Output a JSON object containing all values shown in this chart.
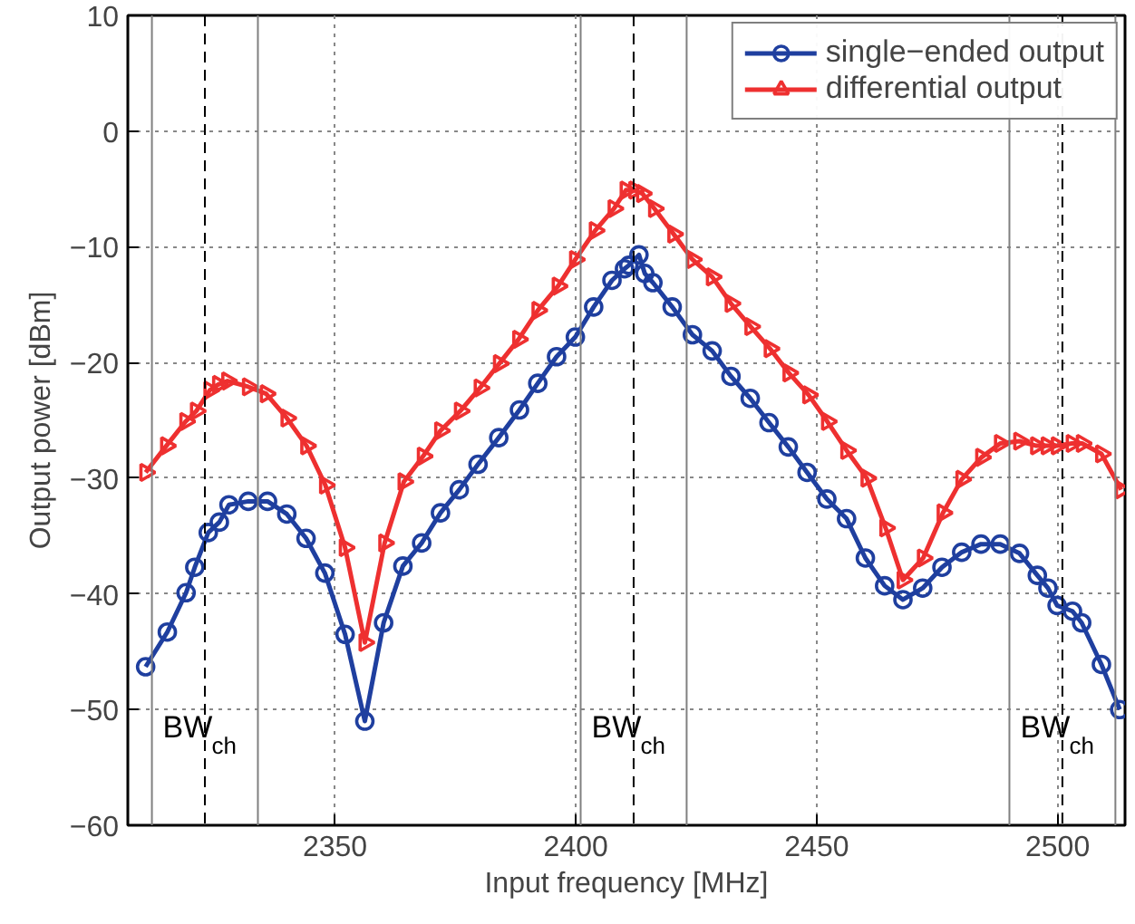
{
  "chart_data": {
    "type": "line",
    "xlabel": "Input frequency [MHz]",
    "ylabel": "Output power [dBm]",
    "xlim": [
      2307,
      2514
    ],
    "ylim": [
      -60,
      10
    ],
    "xticks": [
      2350,
      2400,
      2450,
      2500
    ],
    "yticks": [
      -60,
      -50,
      -40,
      -30,
      -20,
      -10,
      0,
      10
    ],
    "grid": true,
    "legend": "top right",
    "line_style": "solid",
    "series": [
      {
        "name": "single−ended output",
        "color": "#1f3f9f",
        "marker": "circle",
        "x": [
          2310.7,
          2315.2,
          2319.1,
          2320.9,
          2323.7,
          2326.0,
          2328.0,
          2332.0,
          2336.0,
          2340.0,
          2344.0,
          2347.9,
          2352.1,
          2356.2,
          2360.1,
          2364.1,
          2368.0,
          2371.9,
          2375.8,
          2379.7,
          2384.0,
          2388.3,
          2392.1,
          2396.0,
          2399.9,
          2403.7,
          2407.5,
          2410.1,
          2411.0,
          2413.1,
          2414.3,
          2416.0,
          2420.0,
          2424.2,
          2428.3,
          2432.2,
          2436.2,
          2440.1,
          2444.1,
          2448.0,
          2452.1,
          2456.2,
          2460.1,
          2464.1,
          2467.9,
          2472.0,
          2476.0,
          2480.1,
          2484.1,
          2488.1,
          2492.1,
          2495.8,
          2498.0,
          2499.9,
          2503.1,
          2505.0,
          2509.1,
          2512.9
        ],
        "values": [
          -46.3,
          -43.3,
          -39.9,
          -37.7,
          -34.7,
          -33.8,
          -32.3,
          -32.0,
          -32.0,
          -33.1,
          -35.2,
          -38.2,
          -43.5,
          -51.0,
          -42.5,
          -37.6,
          -35.6,
          -33.0,
          -31.0,
          -28.8,
          -26.5,
          -24.1,
          -21.8,
          -19.5,
          -17.8,
          -15.2,
          -12.9,
          -11.9,
          -11.6,
          -10.7,
          -12.3,
          -13.1,
          -15.2,
          -17.6,
          -19.0,
          -21.2,
          -23.1,
          -25.2,
          -27.3,
          -29.5,
          -31.8,
          -33.5,
          -36.9,
          -39.3,
          -40.5,
          -39.5,
          -37.7,
          -36.4,
          -35.7,
          -35.7,
          -36.5,
          -38.4,
          -39.5,
          -41.0,
          -41.5,
          -42.5,
          -46.1,
          -50.0
        ]
      },
      {
        "name": "differential output",
        "color": "#ee3030",
        "marker": "triangle",
        "x": [
          2310.7,
          2315.0,
          2319.0,
          2321.2,
          2324.0,
          2325.8,
          2327.7,
          2332.0,
          2335.7,
          2340.0,
          2344.1,
          2348.0,
          2352.1,
          2356.2,
          2360.3,
          2364.3,
          2368.3,
          2371.9,
          2376.0,
          2380.1,
          2384.1,
          2388.1,
          2392.1,
          2396.3,
          2399.9,
          2404.0,
          2407.9,
          2410.4,
          2412.2,
          2413.8,
          2416.3,
          2420.3,
          2424.2,
          2428.3,
          2432.2,
          2436.3,
          2440.3,
          2444.2,
          2448.3,
          2452.2,
          2456.2,
          2460.4,
          2464.3,
          2467.9,
          2472.1,
          2476.2,
          2480.1,
          2484.2,
          2488.1,
          2492.1,
          2495.6,
          2497.8,
          2499.9,
          2503.0,
          2505.1,
          2509.1,
          2513.2
        ],
        "values": [
          -29.5,
          -27.2,
          -25.1,
          -24.2,
          -22.4,
          -21.9,
          -21.6,
          -22.1,
          -22.7,
          -24.8,
          -27.2,
          -30.6,
          -36.0,
          -44.2,
          -35.6,
          -30.3,
          -28.1,
          -25.9,
          -24.2,
          -22.2,
          -20.1,
          -18.0,
          -15.5,
          -13.4,
          -11.1,
          -8.6,
          -6.7,
          -5.1,
          -5.1,
          -5.4,
          -6.7,
          -8.9,
          -11.1,
          -12.6,
          -14.9,
          -16.9,
          -18.8,
          -20.9,
          -22.8,
          -25.1,
          -27.6,
          -30.0,
          -34.3,
          -38.8,
          -36.9,
          -33.0,
          -30.1,
          -28.2,
          -27.0,
          -26.8,
          -27.2,
          -27.2,
          -27.2,
          -27.0,
          -27.0,
          -27.9,
          -31.0
        ]
      }
    ],
    "ref_lines": [
      {
        "axis": "x",
        "value": 2312,
        "color": "#808080",
        "line_style": "solid",
        "label": "BW$_{ch}$"
      },
      {
        "axis": "x",
        "value": 2323,
        "color": "#000000",
        "line_style": "dashed"
      },
      {
        "axis": "x",
        "value": 2334,
        "color": "#808080",
        "line_style": "solid"
      },
      {
        "axis": "x",
        "value": 2401,
        "color": "#808080",
        "line_style": "solid",
        "label": "BW$_{ch}$"
      },
      {
        "axis": "x",
        "value": 2412,
        "color": "#000000",
        "line_style": "dashed"
      },
      {
        "axis": "x",
        "value": 2423,
        "color": "#808080",
        "line_style": "solid"
      },
      {
        "axis": "x",
        "value": 2490,
        "color": "#808080",
        "line_style": "solid",
        "label": "BW$_{ch}$"
      },
      {
        "axis": "x",
        "value": 2501,
        "color": "#000000",
        "line_style": "dashed"
      },
      {
        "axis": "x",
        "value": 2512,
        "color": "#808080",
        "line_style": "solid"
      }
    ]
  }
}
